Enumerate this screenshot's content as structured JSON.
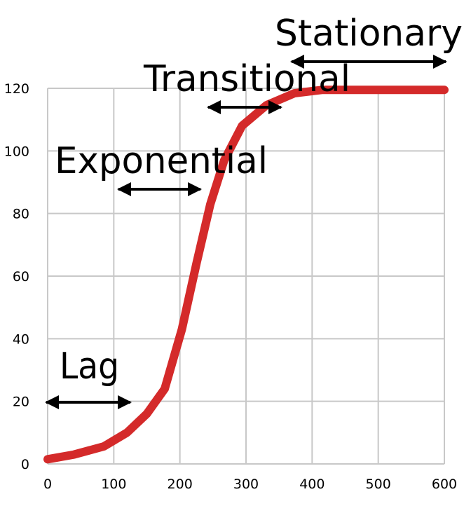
{
  "chart_data": {
    "type": "line",
    "x": [
      0,
      40,
      85,
      120,
      150,
      177,
      203,
      225,
      246,
      267,
      294,
      331,
      373,
      416,
      500,
      600
    ],
    "values": [
      1.5,
      3,
      5.6,
      10,
      16,
      24,
      43,
      64,
      83,
      97,
      108,
      114.6,
      118.4,
      119.5,
      119.5,
      119.5
    ],
    "color": "#d42a2a",
    "xlim": [
      0,
      600
    ],
    "xticks": [
      0,
      100,
      200,
      300,
      400,
      500,
      600
    ],
    "ylim": [
      0,
      120
    ],
    "yticks": [
      0,
      20,
      40,
      60,
      80,
      100,
      120
    ],
    "grid": true,
    "annotations": [
      "Stationary",
      "Transitional",
      "Exponential",
      "Lag"
    ]
  }
}
